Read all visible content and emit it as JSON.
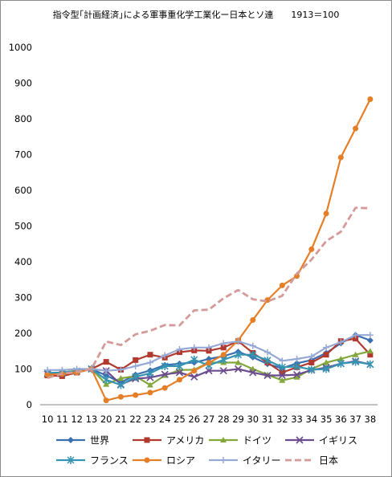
{
  "header": {
    "title": "指令型｢計画経済｣による軍事重化学工業化ー日本とソ連",
    "base_note": "1913＝100"
  },
  "chart_data": {
    "type": "line",
    "title": "指令型｢計画経済｣による軍事重化学工業化ー日本とソ連",
    "subtitle": "1913＝100",
    "xlabel": "",
    "ylabel": "",
    "x": [
      "10",
      "11",
      "12",
      "13",
      "20",
      "21",
      "22",
      "23",
      "24",
      "25",
      "26",
      "27",
      "28",
      "29",
      "30",
      "31",
      "32",
      "33",
      "34",
      "35",
      "36",
      "37",
      "38"
    ],
    "ylim": [
      0,
      1000
    ],
    "yticks": [
      0,
      100,
      200,
      300,
      400,
      500,
      600,
      700,
      800,
      900,
      1000
    ],
    "grid": false,
    "legend_position": "bottom",
    "series": [
      {
        "name": "世界",
        "color": "#3a6fb0",
        "marker": "diamond",
        "dash": false,
        "values": [
          85,
          87,
          93,
          100,
          82,
          62,
          84,
          96,
          111,
          115,
          118,
          128,
          136,
          148,
          133,
          114,
          102,
          116,
          125,
          145,
          172,
          195,
          180
        ]
      },
      {
        "name": "アメリカ",
        "color": "#b2392f",
        "marker": "square",
        "dash": false,
        "values": [
          82,
          80,
          90,
          100,
          120,
          98,
          125,
          140,
          132,
          147,
          152,
          151,
          160,
          178,
          145,
          118,
          90,
          105,
          118,
          140,
          178,
          185,
          140
        ]
      },
      {
        "name": "ドイツ",
        "color": "#82a83c",
        "marker": "triangle",
        "dash": false,
        "values": [
          88,
          90,
          96,
          100,
          57,
          74,
          80,
          55,
          82,
          97,
          98,
          118,
          118,
          118,
          100,
          84,
          68,
          77,
          100,
          118,
          128,
          140,
          150
        ]
      },
      {
        "name": "イギリス",
        "color": "#6b4c8f",
        "marker": "x",
        "dash": false,
        "values": [
          86,
          88,
          94,
          100,
          95,
          57,
          73,
          76,
          85,
          90,
          78,
          95,
          95,
          100,
          90,
          82,
          82,
          84,
          97,
          104,
          115,
          122,
          113
        ]
      },
      {
        "name": "フランス",
        "color": "#3594b2",
        "marker": "star",
        "dash": false,
        "values": [
          89,
          90,
          94,
          100,
          70,
          55,
          78,
          88,
          108,
          108,
          126,
          110,
          126,
          140,
          140,
          124,
          105,
          107,
          98,
          100,
          115,
          120,
          113
        ]
      },
      {
        "name": "ロシア",
        "color": "#e47f28",
        "marker": "circle",
        "dash": false,
        "values": [
          84,
          86,
          90,
          100,
          12,
          22,
          27,
          34,
          47,
          70,
          95,
          117,
          140,
          180,
          237,
          293,
          334,
          360,
          435,
          535,
          692,
          773,
          855
        ]
      },
      {
        "name": "イタリー",
        "color": "#96a9d6",
        "marker": "plus",
        "dash": false,
        "values": [
          97,
          97,
          100,
          100,
          95,
          98,
          108,
          118,
          138,
          155,
          160,
          160,
          172,
          177,
          165,
          147,
          123,
          128,
          135,
          160,
          175,
          195,
          195
        ]
      },
      {
        "name": "日本",
        "color": "#d49a9a",
        "marker": "none",
        "dash": true,
        "values": [
          75,
          87,
          92,
          100,
          177,
          167,
          197,
          207,
          223,
          222,
          264,
          266,
          298,
          321,
          295,
          289,
          305,
          367,
          406,
          458,
          484,
          551,
          550
        ]
      }
    ]
  }
}
